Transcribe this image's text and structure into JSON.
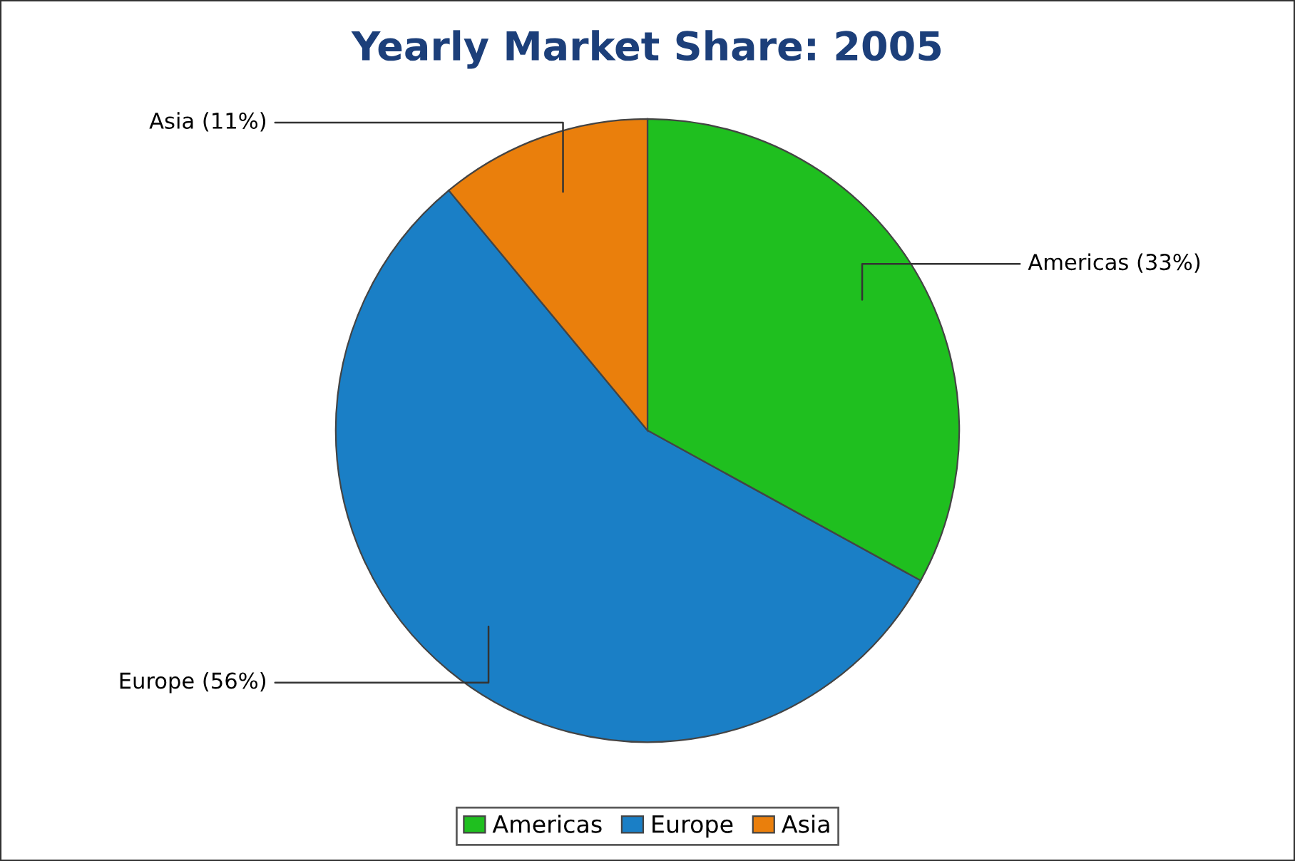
{
  "chart_data": {
    "type": "pie",
    "title": "Yearly Market Share: 2005",
    "categories": [
      "Americas",
      "Europe",
      "Asia"
    ],
    "values": [
      33,
      56,
      11
    ],
    "colors": [
      "#1fbf1f",
      "#1a7fc6",
      "#ea7f0c"
    ],
    "value_labels": [
      "Americas (33%)",
      "Europe (56%)",
      "Asia (11%)"
    ],
    "legend": "bottom"
  }
}
